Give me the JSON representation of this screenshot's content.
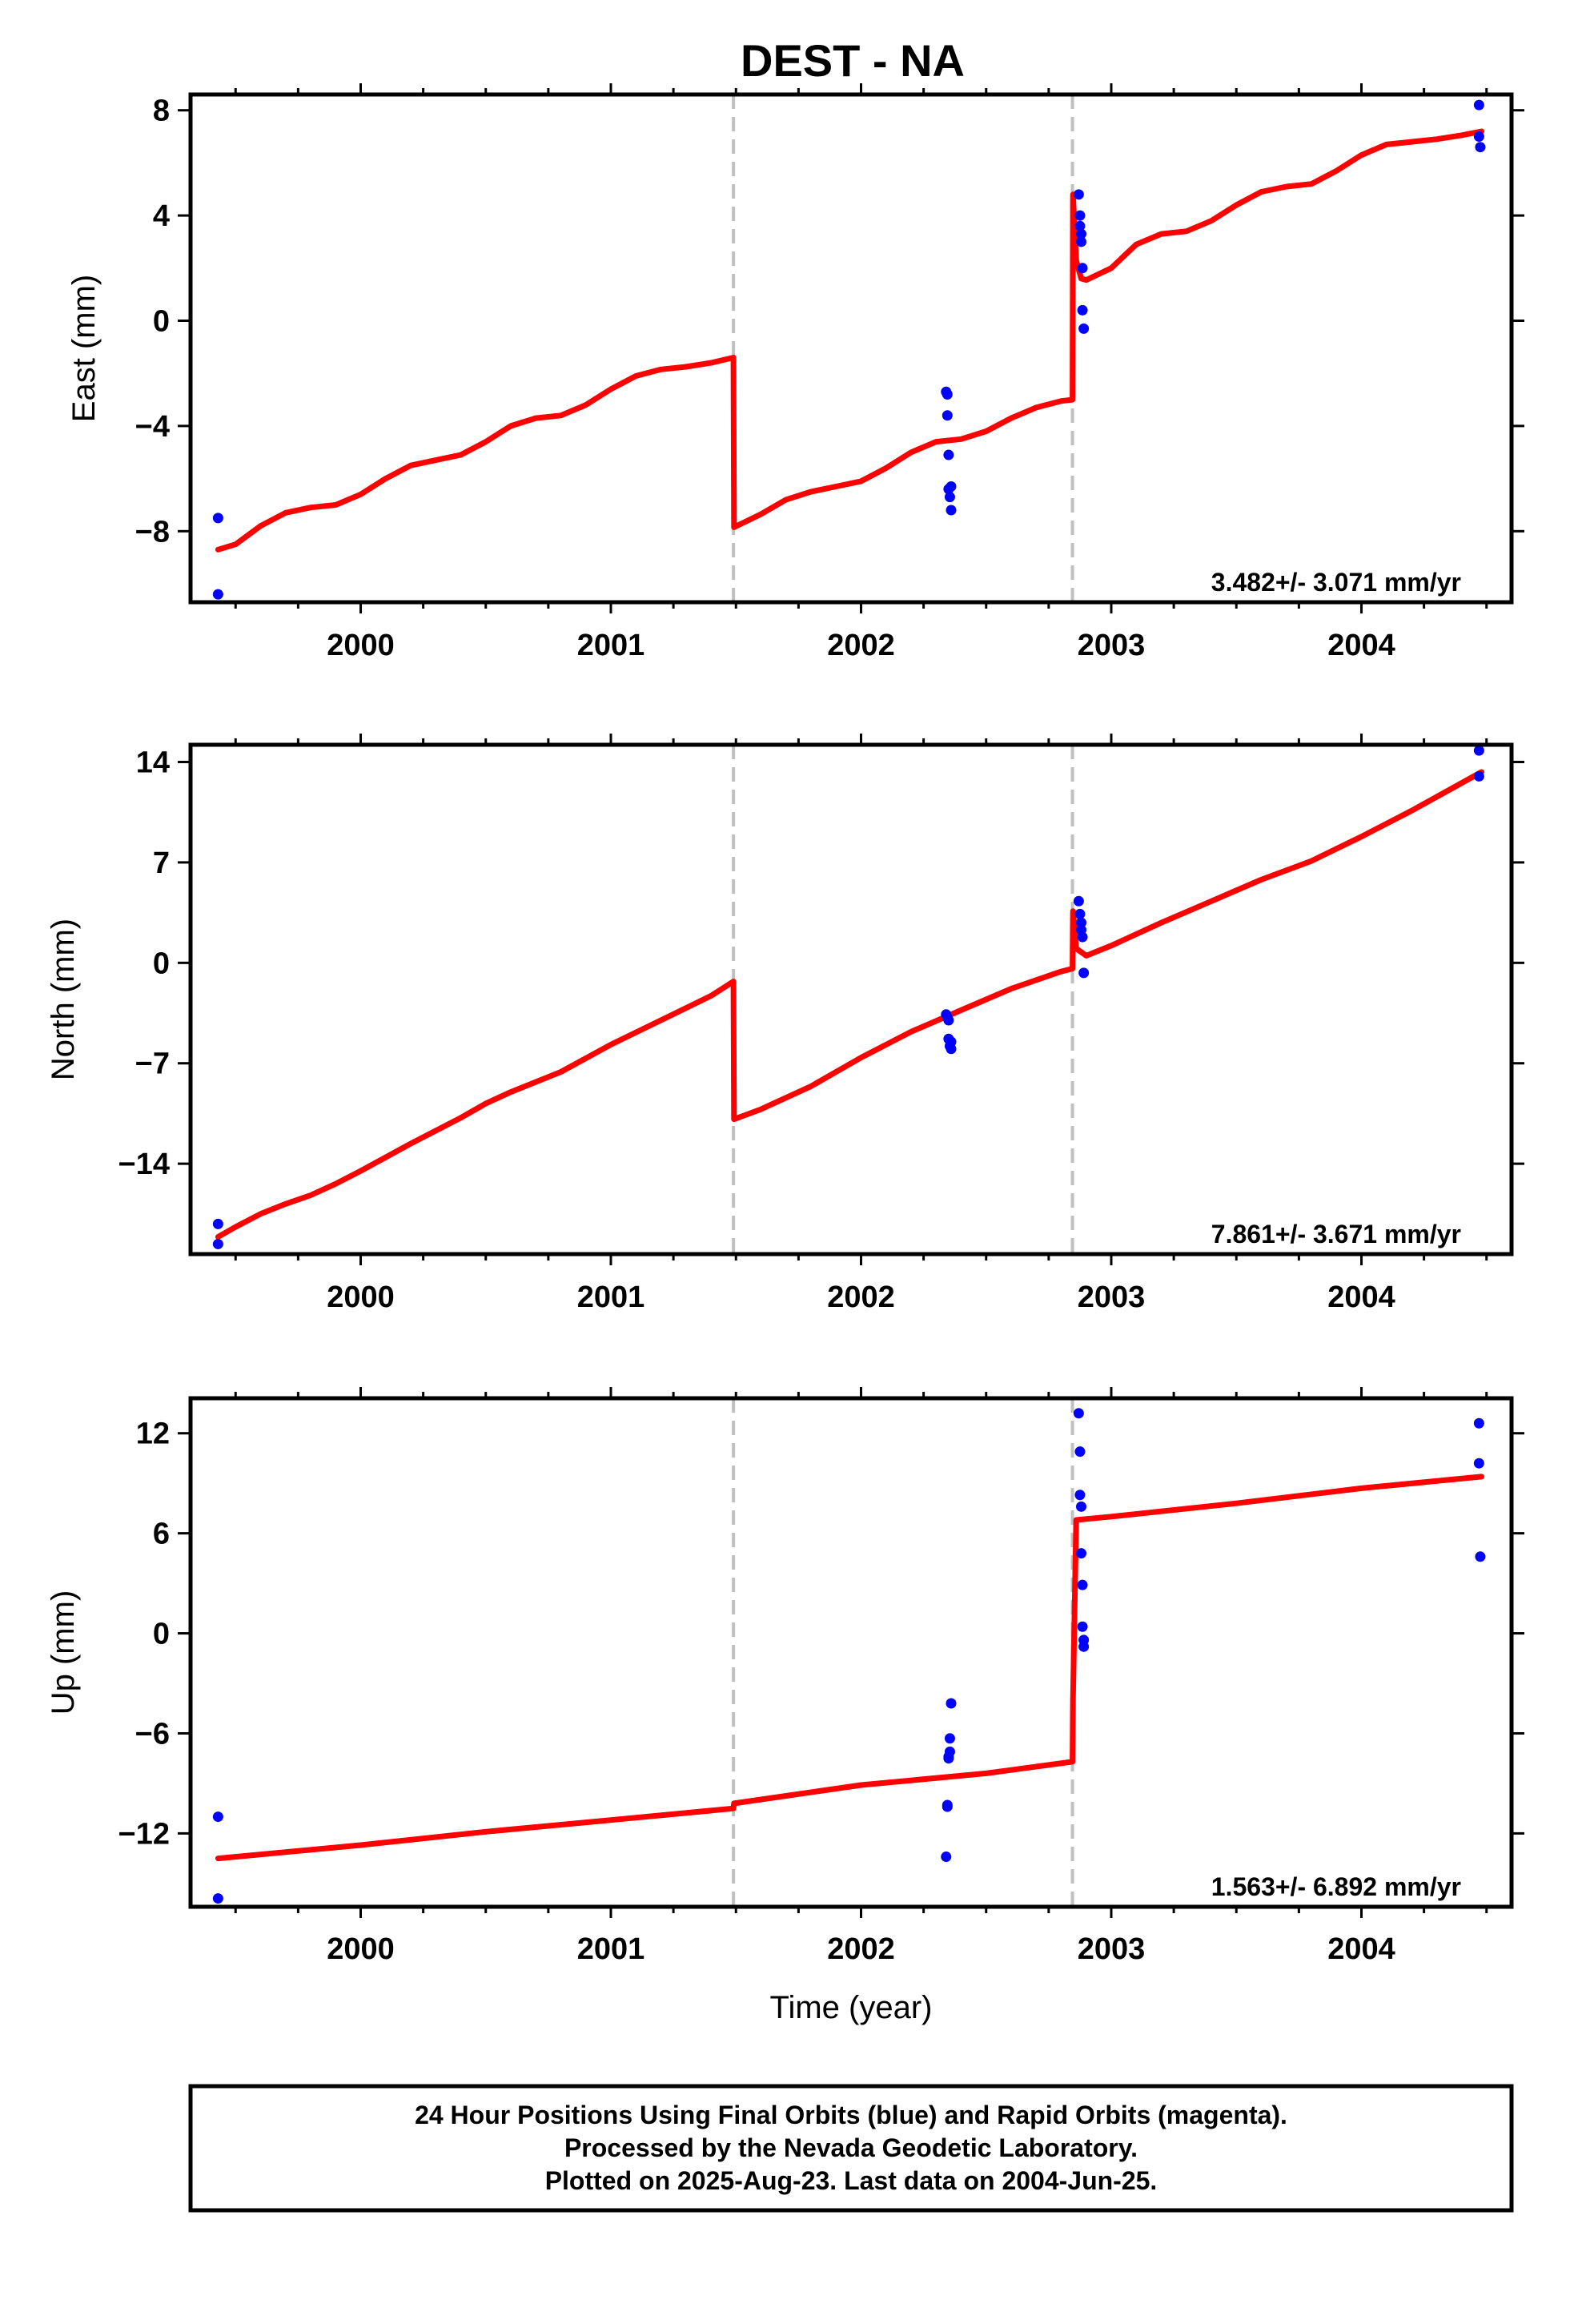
{
  "title": "DEST - NA",
  "colors": {
    "model": "#ff0000",
    "points": "#0000ff",
    "break_line": "#c0c0c0",
    "frame": "#000000"
  },
  "footer": {
    "line1": "24 Hour Positions Using Final Orbits (blue) and Rapid Orbits (magenta).",
    "line2": "Processed by the Nevada Geodetic Laboratory.",
    "line3": "Plotted on 2025-Aug-23. Last data on 2004-Jun-25."
  },
  "chart_data": [
    {
      "type": "scatter",
      "id": "east",
      "ylabel": "East (mm)",
      "xlabel": "",
      "xlim": [
        1999.32,
        2004.6
      ],
      "ylim": [
        -10.7,
        8.6
      ],
      "yticks": [
        8,
        4,
        0,
        -4,
        -8
      ],
      "ytick_labels": [
        "8",
        "4",
        "0",
        "−4",
        "−8"
      ],
      "xticks": [
        2000,
        2001,
        2002,
        2003,
        2004
      ],
      "xtick_labels": [
        "2000",
        "2001",
        "2002",
        "2003",
        "2004"
      ],
      "rate": "3.482+/- 3.071 mm/yr",
      "breaks": [
        2001.49,
        2002.845
      ],
      "points": {
        "x": [
          1999.43,
          1999.43,
          2002.34,
          2002.345,
          2002.345,
          2002.35,
          2002.35,
          2002.355,
          2002.36,
          2002.36,
          2002.87,
          2002.875,
          2002.875,
          2002.88,
          2002.88,
          2002.885,
          2002.885,
          2002.89,
          2004.47,
          2004.47,
          2004.475
        ],
        "y": [
          -7.5,
          -10.4,
          -2.7,
          -2.8,
          -3.6,
          -5.1,
          -6.4,
          -6.7,
          -6.3,
          -7.2,
          4.8,
          4.0,
          3.6,
          3.3,
          3.0,
          2.0,
          0.4,
          -0.3,
          8.2,
          7.0,
          6.6
        ]
      },
      "model": {
        "x": [
          1999.43,
          1999.5,
          1999.6,
          1999.7,
          1999.8,
          1999.9,
          2000.0,
          2000.1,
          2000.2,
          2000.3,
          2000.4,
          2000.5,
          2000.6,
          2000.7,
          2000.8,
          2000.9,
          2001.0,
          2001.1,
          2001.2,
          2001.3,
          2001.4,
          2001.49,
          2001.492,
          2001.6,
          2001.7,
          2001.8,
          2001.9,
          2002.0,
          2002.1,
          2002.2,
          2002.3,
          2002.4,
          2002.5,
          2002.6,
          2002.7,
          2002.8,
          2002.845,
          2002.847,
          2002.86,
          2002.88,
          2002.9,
          2003.0,
          2003.1,
          2003.2,
          2003.3,
          2003.4,
          2003.5,
          2003.6,
          2003.7,
          2003.8,
          2003.9,
          2004.0,
          2004.1,
          2004.2,
          2004.3,
          2004.4,
          2004.48
        ],
        "y": [
          -8.7,
          -8.5,
          -7.8,
          -7.3,
          -7.1,
          -7.0,
          -6.6,
          -6.0,
          -5.5,
          -5.3,
          -5.1,
          -4.6,
          -4.0,
          -3.7,
          -3.6,
          -3.2,
          -2.6,
          -2.1,
          -1.85,
          -1.75,
          -1.6,
          -1.4,
          -7.85,
          -7.35,
          -6.8,
          -6.5,
          -6.3,
          -6.1,
          -5.6,
          -5.0,
          -4.6,
          -4.5,
          -4.2,
          -3.7,
          -3.3,
          -3.05,
          -3.0,
          4.8,
          2.3,
          1.6,
          1.55,
          2.0,
          2.9,
          3.3,
          3.4,
          3.8,
          4.4,
          4.9,
          5.1,
          5.2,
          5.7,
          6.3,
          6.7,
          6.8,
          6.9,
          7.05,
          7.2
        ]
      }
    },
    {
      "type": "scatter",
      "id": "north",
      "ylabel": "North (mm)",
      "xlabel": "",
      "xlim": [
        1999.32,
        2004.6
      ],
      "ylim": [
        -20.3,
        15.2
      ],
      "yticks": [
        14,
        7,
        0,
        -7,
        -14
      ],
      "ytick_labels": [
        "14",
        "7",
        "0",
        "−7",
        "−14"
      ],
      "xticks": [
        2000,
        2001,
        2002,
        2003,
        2004
      ],
      "xtick_labels": [
        "2000",
        "2001",
        "2002",
        "2003",
        "2004"
      ],
      "rate": "7.861+/- 3.671 mm/yr",
      "breaks": [
        2001.49,
        2002.845
      ],
      "points": {
        "x": [
          1999.43,
          1999.43,
          2002.34,
          2002.345,
          2002.35,
          2002.35,
          2002.355,
          2002.36,
          2002.36,
          2002.87,
          2002.875,
          2002.88,
          2002.88,
          2002.885,
          2002.89,
          2004.47,
          2004.47
        ],
        "y": [
          -18.2,
          -19.6,
          -3.6,
          -3.8,
          -4.0,
          -5.3,
          -5.8,
          -5.5,
          -6.0,
          4.3,
          3.4,
          2.8,
          2.3,
          1.8,
          -0.7,
          14.8,
          13.0
        ]
      },
      "model": {
        "x": [
          1999.43,
          1999.5,
          1999.6,
          1999.7,
          1999.8,
          1999.9,
          2000.0,
          2000.2,
          2000.4,
          2000.5,
          2000.6,
          2000.8,
          2001.0,
          2001.2,
          2001.4,
          2001.49,
          2001.492,
          2001.6,
          2001.8,
          2002.0,
          2002.2,
          2002.4,
          2002.6,
          2002.8,
          2002.845,
          2002.847,
          2002.86,
          2002.9,
          2003.0,
          2003.2,
          2003.4,
          2003.6,
          2003.8,
          2004.0,
          2004.2,
          2004.48
        ],
        "y": [
          -19.1,
          -18.4,
          -17.5,
          -16.8,
          -16.2,
          -15.4,
          -14.5,
          -12.6,
          -10.8,
          -9.8,
          -9.0,
          -7.6,
          -5.7,
          -4.0,
          -2.3,
          -1.3,
          -10.9,
          -10.2,
          -8.6,
          -6.6,
          -4.8,
          -3.3,
          -1.8,
          -0.6,
          -0.4,
          3.6,
          1.0,
          0.5,
          1.2,
          2.8,
          4.3,
          5.8,
          7.1,
          8.8,
          10.6,
          13.3
        ]
      }
    },
    {
      "type": "scatter",
      "id": "up",
      "ylabel": "Up (mm)",
      "xlabel": "Time (year)",
      "xlim": [
        1999.32,
        2004.6
      ],
      "ylim": [
        -16.4,
        14.1
      ],
      "yticks": [
        12,
        6,
        0,
        -6,
        -12
      ],
      "ytick_labels": [
        "12",
        "6",
        "0",
        "−6",
        "−12"
      ],
      "xticks": [
        2000,
        2001,
        2002,
        2003,
        2004
      ],
      "xtick_labels": [
        "2000",
        "2001",
        "2002",
        "2003",
        "2004"
      ],
      "rate": "1.563+/- 6.892 mm/yr",
      "breaks": [
        2001.49,
        2002.845
      ],
      "points": {
        "x": [
          1999.43,
          1999.43,
          2002.34,
          2002.345,
          2002.345,
          2002.35,
          2002.35,
          2002.355,
          2002.355,
          2002.36,
          2002.87,
          2002.875,
          2002.875,
          2002.88,
          2002.88,
          2002.885,
          2002.885,
          2002.89,
          2002.89,
          2004.47,
          2004.47,
          2004.475
        ],
        "y": [
          -15.9,
          -11.0,
          -13.4,
          -10.4,
          -10.3,
          -7.5,
          -7.4,
          -7.1,
          -6.3,
          -4.2,
          13.2,
          10.9,
          8.3,
          7.6,
          4.8,
          2.9,
          0.4,
          -0.4,
          -0.8,
          12.6,
          10.2,
          4.6
        ]
      },
      "model": {
        "x": [
          1999.43,
          2000.0,
          2000.5,
          2001.0,
          2001.49,
          2001.492,
          2002.0,
          2002.5,
          2002.845,
          2002.847,
          2002.86,
          2003.0,
          2003.5,
          2004.0,
          2004.48
        ],
        "y": [
          -13.5,
          -12.7,
          -11.9,
          -11.2,
          -10.5,
          -10.2,
          -9.1,
          -8.4,
          -7.7,
          -4.0,
          6.8,
          7.0,
          7.8,
          8.7,
          9.4
        ]
      }
    }
  ]
}
